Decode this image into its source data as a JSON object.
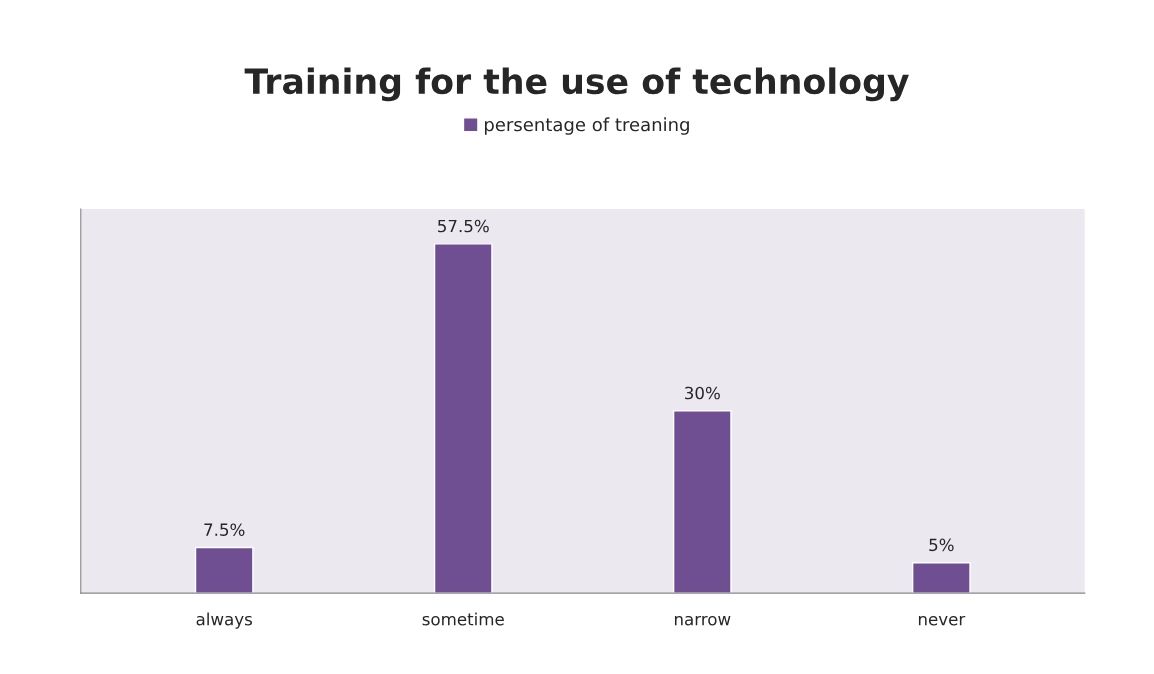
{
  "chart_data": {
    "type": "bar",
    "title": "Training for the use of technology",
    "categories": [
      "always",
      "sometime",
      "narrow",
      "never"
    ],
    "series": [
      {
        "name": "persentage of treaning",
        "color": "#6f4f92",
        "values": [
          7.5,
          57.5,
          30,
          5
        ],
        "value_labels": [
          "7.5%",
          "57.5%",
          "30%",
          "5%"
        ]
      }
    ],
    "legend": "top",
    "grid": false,
    "tick_labels": "x"
  }
}
